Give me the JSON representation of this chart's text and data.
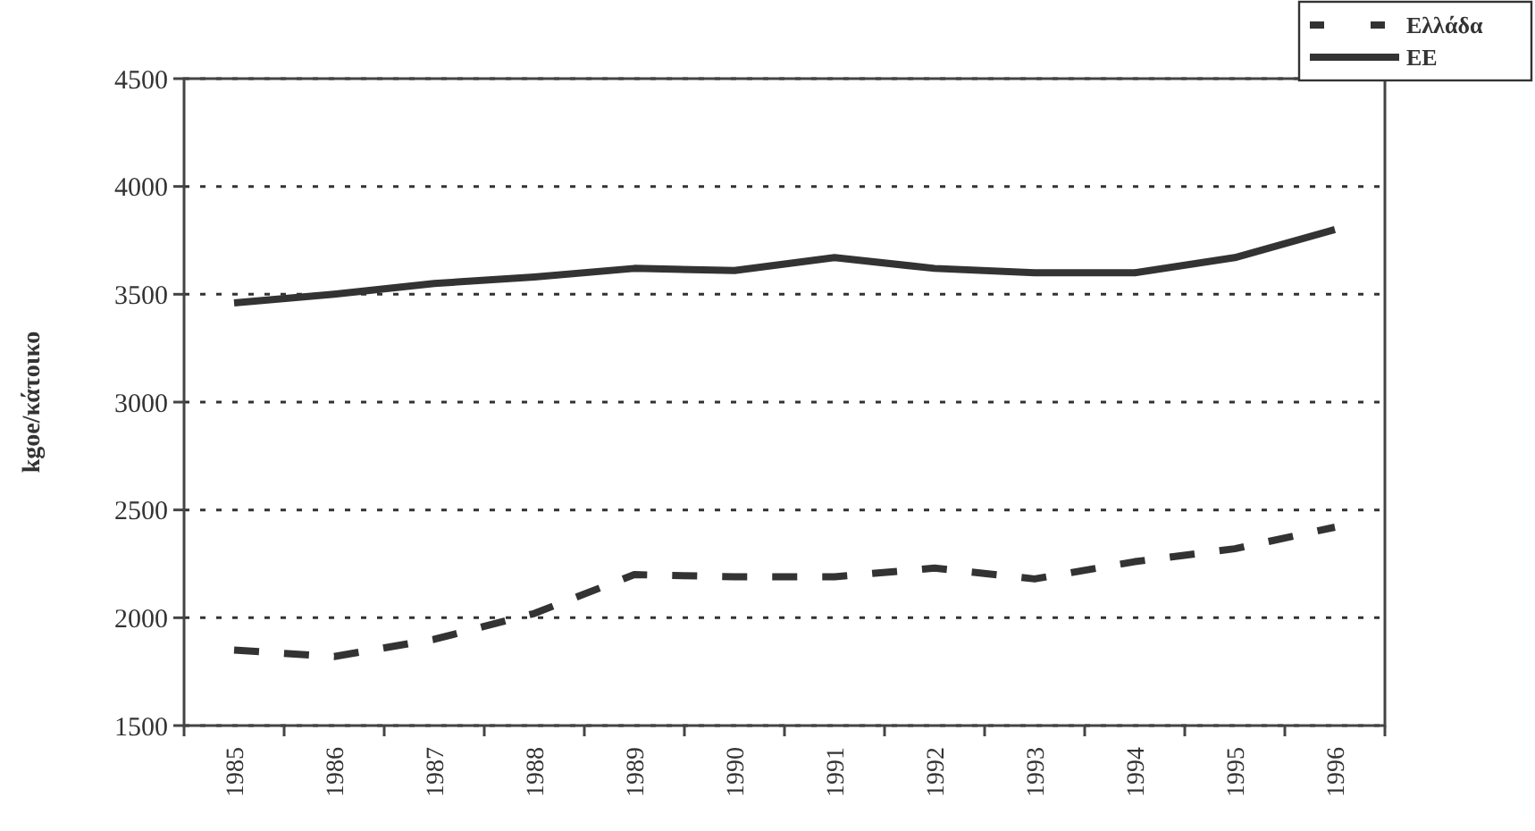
{
  "chart_data": {
    "type": "line",
    "ylabel": "kgoe/κάτοικο",
    "categories": [
      "1985",
      "1986",
      "1987",
      "1988",
      "1989",
      "1990",
      "1991",
      "1992",
      "1993",
      "1994",
      "1995",
      "1996"
    ],
    "series": [
      {
        "name": "Ελλάδα",
        "color": "#333333",
        "line_style": "dashed",
        "values": [
          1850,
          1820,
          1900,
          2020,
          2200,
          2190,
          2190,
          2230,
          2180,
          2260,
          2320,
          2420
        ]
      },
      {
        "name": "ΕΕ",
        "color": "#333333",
        "line_style": "solid",
        "values": [
          3460,
          3500,
          3550,
          3580,
          3620,
          3610,
          3670,
          3620,
          3600,
          3600,
          3670,
          3800
        ]
      }
    ],
    "ylim": [
      1500,
      4500
    ],
    "yticks": [
      1500,
      2000,
      2500,
      3000,
      3500,
      4000,
      4500
    ],
    "grid": "y",
    "legend": "top right",
    "marker": "none"
  }
}
